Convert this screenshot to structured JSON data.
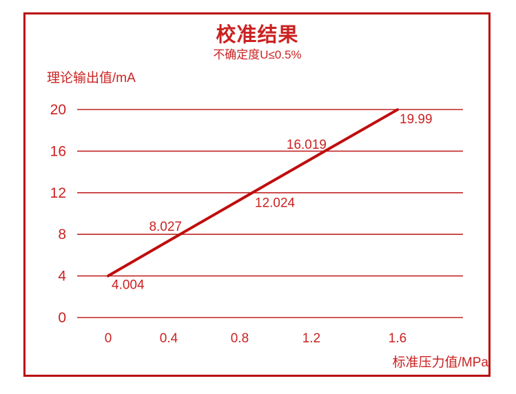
{
  "window": {
    "background": "#ffffff",
    "border_color": "#b90909"
  },
  "chart_data": {
    "type": "line",
    "title": "校准结果",
    "subtitle": "不确定度U≤0.5%",
    "xlabel": "标准压力值/MPa",
    "ylabel": "理论输出值/mA",
    "x": [
      0,
      0.4,
      0.8,
      1.2,
      1.6
    ],
    "x_tick_labels": [
      "0",
      "0.4",
      "0.8",
      "1.2",
      "1.6"
    ],
    "y_ticks": [
      0,
      4,
      8,
      12,
      16,
      20
    ],
    "y_tick_labels": [
      "0",
      "4",
      "8",
      "12",
      "16",
      "20"
    ],
    "ylim": [
      0,
      20
    ],
    "xlim": [
      0,
      1.6
    ],
    "series": [
      {
        "name": "理论输出值",
        "values": [
          4.004,
          8.027,
          12.024,
          16.019,
          19.99
        ]
      }
    ],
    "point_labels": [
      "4.004",
      "8.027",
      "12.024",
      "16.019",
      "19.99"
    ],
    "grid": "horizontal",
    "legend": "none",
    "colors": {
      "line": "#c00d0d",
      "gridline": "#c22525",
      "text": "#cb2121"
    }
  }
}
